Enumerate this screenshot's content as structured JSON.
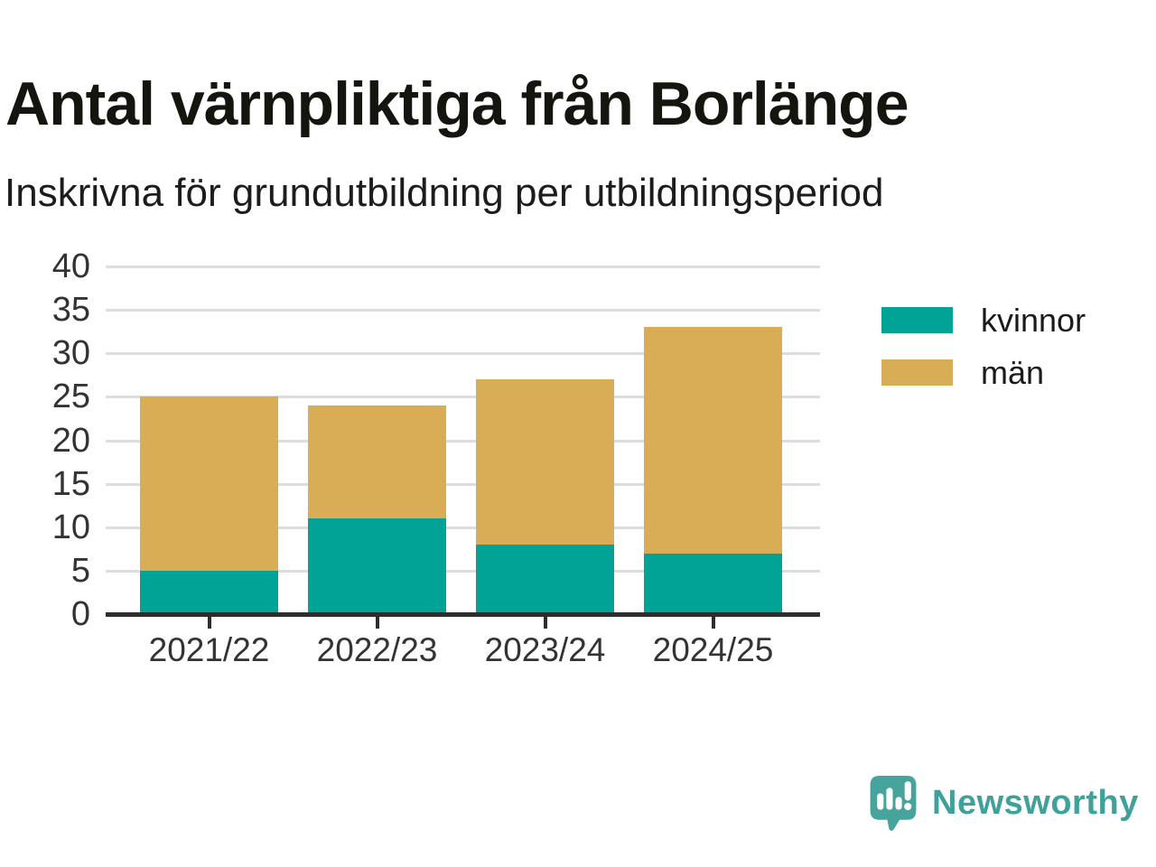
{
  "title": "Antal värnpliktiga från Borlänge",
  "subtitle": "Inskrivna för grundutbildning per utbildningsperiod",
  "chart_data": {
    "type": "bar",
    "stacked": true,
    "title": "Antal värnpliktiga från Borlänge",
    "subtitle": "Inskrivna för grundutbildning per utbildningsperiod",
    "categories": [
      "2021/22",
      "2022/23",
      "2023/24",
      "2024/25"
    ],
    "series": [
      {
        "name": "kvinnor",
        "color": "#00A396",
        "values": [
          5,
          11,
          8,
          7
        ]
      },
      {
        "name": "män",
        "color": "#D9AC56",
        "values": [
          20,
          13,
          19,
          26
        ]
      }
    ],
    "totals": [
      25,
      24,
      27,
      33
    ],
    "xlabel": "",
    "ylabel": "",
    "ylim": [
      0,
      40
    ],
    "yticks": [
      0,
      5,
      10,
      15,
      20,
      25,
      30,
      35,
      40
    ],
    "grid": true,
    "legend_position": "right"
  },
  "colors": {
    "axis": "#2e2e2e",
    "gridline": "#dddddd",
    "tick_text": "#333333"
  },
  "branding": {
    "logo_text": "Newsworthy",
    "logo_text_color": "#3FA19A",
    "logo_icon_color": "#46A49D",
    "logo_icon": "speech-bubble-bar-chart-icon"
  }
}
